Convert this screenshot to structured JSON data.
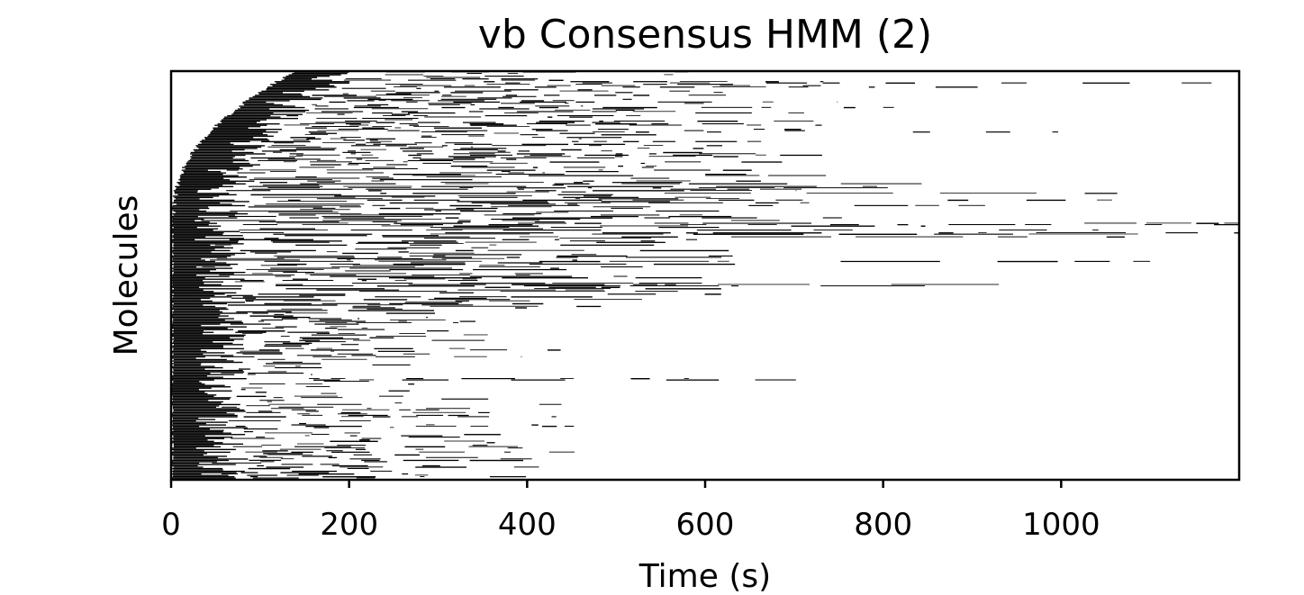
{
  "chart_data": {
    "type": "heatmap",
    "title": "vb Consensus HMM (2)",
    "xlabel": "Time (s)",
    "ylabel": "Molecules",
    "xlim": [
      0,
      1200
    ],
    "xticks": [
      0,
      200,
      400,
      600,
      800,
      1000
    ],
    "xtick_labels": [
      "0",
      "200",
      "400",
      "600",
      "800",
      "1000"
    ],
    "y_ticks_shown": false,
    "molecule_count": 300,
    "description_of_marks": "Each molecule is a horizontal row; black segments mark time intervals spent in the bright/bound state.",
    "max_observed_time_s": 1200,
    "colors": {
      "state": "#000000",
      "background": "#ffffff",
      "frame": "#000000"
    }
  }
}
